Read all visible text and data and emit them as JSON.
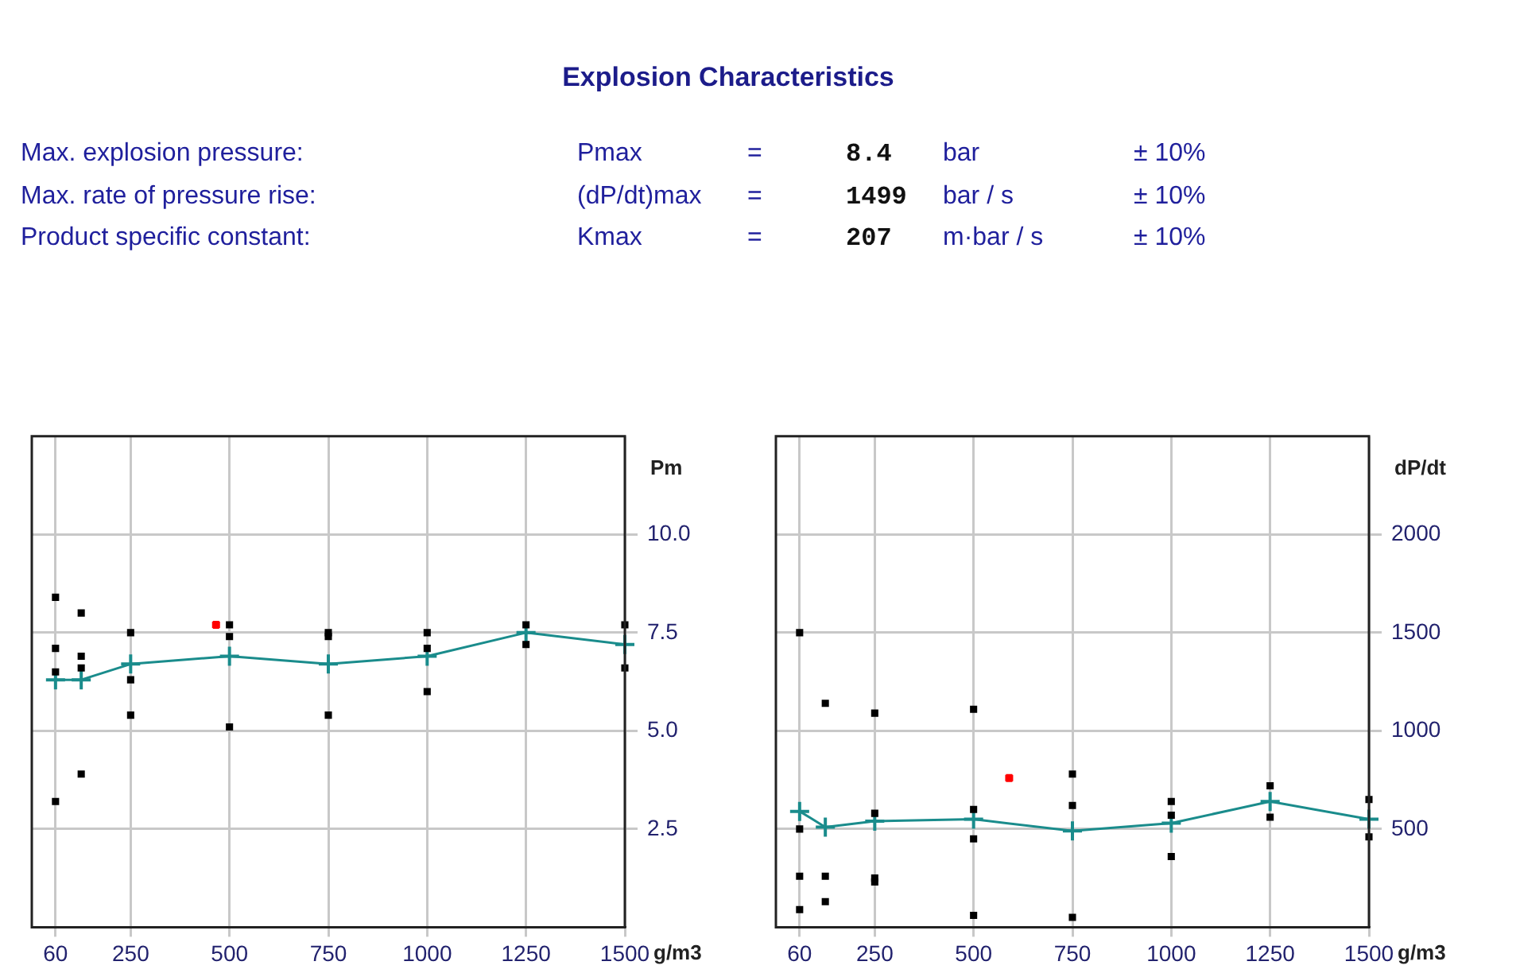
{
  "chart_data": [
    {
      "type": "other",
      "title": "Explosion Characteristics",
      "annotations": [
        "Max. explosion pressure:",
        "Pmax",
        "=",
        "8.4",
        "bar",
        "± 10%",
        "Max. rate of pressure rise:",
        "(dP/dt)max",
        "=",
        "1499",
        "bar / s",
        "± 10%",
        "Product specific constant:",
        "Kmax",
        "=",
        "207",
        "m·bar / s",
        "± 10%"
      ]
    },
    {
      "type": "scatter",
      "xlabel": "g/m3",
      "ylabel": "Pm",
      "xlim": [
        0,
        1500
      ],
      "xticks": [
        60,
        250,
        500,
        750,
        1000,
        1250,
        1500
      ],
      "ylim": [
        0,
        12.5
      ],
      "yticks": [
        {
          "value": 2.5,
          "label": "2.5"
        },
        {
          "value": 5,
          "label": "5.0"
        },
        {
          "value": 7.5,
          "label": "7.5"
        },
        {
          "value": 10,
          "label": "10.0"
        }
      ],
      "grid": true,
      "legend": false,
      "series": [
        {
          "type": "scatter",
          "marker": "square",
          "color": "#000000",
          "x": [
            60,
            60,
            60,
            60,
            125,
            125,
            125,
            125,
            250,
            250,
            250,
            500,
            500,
            500,
            750,
            750,
            750,
            1000,
            1000,
            1000,
            1250,
            1250,
            1500,
            1500
          ],
          "values": [
            8.4,
            7.1,
            6.5,
            3.2,
            8.0,
            6.9,
            6.6,
            3.9,
            7.5,
            6.3,
            5.4,
            7.7,
            7.4,
            5.1,
            7.5,
            7.4,
            5.4,
            7.5,
            7.1,
            6.0,
            7.7,
            7.2,
            7.7,
            6.6
          ]
        },
        {
          "type": "line",
          "marker": "cross",
          "color": "#1a8c8c",
          "x": [
            60,
            125,
            250,
            500,
            750,
            1000,
            1250,
            1500
          ],
          "values": [
            6.3,
            6.3,
            6.7,
            6.9,
            6.7,
            6.9,
            7.5,
            7.2
          ]
        },
        {
          "type": "scatter",
          "marker": "cross",
          "color": "#ff0000",
          "x": [
            466
          ],
          "values": [
            7.7
          ]
        }
      ]
    },
    {
      "type": "scatter",
      "xlabel": "g/m3",
      "ylabel": "dP/dt",
      "xlim": [
        0,
        1500
      ],
      "xticks": [
        60,
        250,
        500,
        750,
        1000,
        1250,
        1500
      ],
      "ylim": [
        0,
        2500
      ],
      "yticks": [
        500,
        1000,
        1500,
        2000
      ],
      "grid": true,
      "legend": false,
      "series": [
        {
          "type": "scatter",
          "marker": "square",
          "color": "#000000",
          "x": [
            60,
            60,
            60,
            60,
            125,
            125,
            125,
            250,
            250,
            250,
            250,
            500,
            500,
            500,
            500,
            750,
            750,
            750,
            1000,
            1000,
            1000,
            1250,
            1250,
            1500,
            1500
          ],
          "values": [
            1500,
            500,
            260,
            90,
            1140,
            260,
            130,
            1090,
            580,
            250,
            230,
            1110,
            600,
            450,
            60,
            780,
            620,
            50,
            640,
            570,
            360,
            720,
            560,
            650,
            460
          ]
        },
        {
          "type": "line",
          "marker": "cross",
          "color": "#1a8c8c",
          "x": [
            60,
            125,
            250,
            500,
            750,
            1000,
            1250,
            1500
          ],
          "values": [
            590,
            510,
            540,
            550,
            490,
            530,
            640,
            550
          ]
        },
        {
          "type": "scatter",
          "marker": "cross",
          "color": "#ff0000",
          "x": [
            590
          ],
          "values": [
            760
          ]
        }
      ]
    }
  ]
}
